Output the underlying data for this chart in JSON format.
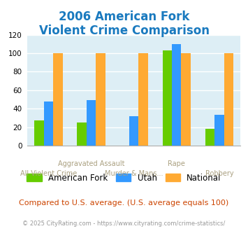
{
  "title_line1": "2006 American Fork",
  "title_line2": "Violent Crime Comparison",
  "title_color": "#1a7abf",
  "categories": [
    "All Violent Crime",
    "Aggravated Assault",
    "Murder & Mans...",
    "Rape",
    "Robbery"
  ],
  "x_label_top": [
    "",
    "Aggravated Assault",
    "",
    "Rape",
    ""
  ],
  "x_label_bot": [
    "All Violent Crime",
    "",
    "Murder & Mans...",
    "",
    "Robbery"
  ],
  "series": {
    "American Fork": [
      27,
      25,
      0,
      103,
      18
    ],
    "Utah": [
      48,
      49,
      32,
      110,
      33
    ],
    "National": [
      100,
      100,
      100,
      100,
      100
    ]
  },
  "colors": {
    "American Fork": "#66cc00",
    "Utah": "#3399ff",
    "National": "#ffaa33"
  },
  "ylim": [
    0,
    120
  ],
  "yticks": [
    0,
    20,
    40,
    60,
    80,
    100,
    120
  ],
  "plot_bg_color": "#ddeef5",
  "grid_color": "#ffffff",
  "footnote1": "Compared to U.S. average. (U.S. average equals 100)",
  "footnote1_color": "#cc4400",
  "footnote2": "© 2025 CityRating.com - https://www.cityrating.com/crime-statistics/",
  "footnote2_color": "#999999",
  "legend_labels": [
    "American Fork",
    "Utah",
    "National"
  ],
  "bar_width": 0.22
}
